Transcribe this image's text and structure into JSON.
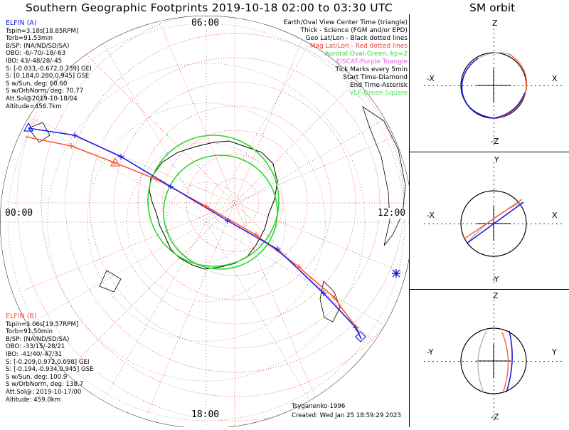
{
  "title": "Southern Geographic Footprints 2019-10-18 02:00 to 03:30 UTC",
  "orbit_title": "SM orbit",
  "colors": {
    "elfin_a": "#1a1ae6",
    "elfin_b": "#ff5a3c",
    "oval": "#2ed62e",
    "latlon": "#999999",
    "maglatlon": "#e8403a",
    "eiscat": "#e060e0",
    "vlf": "#4ce64c"
  },
  "map": {
    "hours": {
      "top": "06:00",
      "left": "00:00",
      "right": "12:00",
      "bottom": "18:00"
    }
  },
  "legend": [
    {
      "text": "Earth/Oval View Center Time (triangle)",
      "color": "#000000"
    },
    {
      "text": "Thick - Science (FGM and/or EPD)",
      "color": "#000000"
    },
    {
      "text": "Geo Lat/Lon - Black dotted lines",
      "color": "#000000"
    },
    {
      "text": "Mag Lat/Lon - Red dotted lines",
      "color": "#e8403a"
    },
    {
      "text": "Auroral Oval-Green, kp=2",
      "color": "#2ed62e"
    },
    {
      "text": "EISCAT-Purple Triangle",
      "color": "#e060e0"
    },
    {
      "text": "Tick Marks every 5min",
      "color": "#000000"
    },
    {
      "text": "Start Time-Diamond",
      "color": "#000000"
    },
    {
      "text": "End Time-Asterisk",
      "color": "#000000"
    },
    {
      "text": "VLF-Green Square",
      "color": "#4ce64c"
    }
  ],
  "elfin_a": {
    "name": "ELFIN (A)",
    "lines": [
      "Tspin=3.18s[18.85RPM]",
      "Torb=91.53min",
      "B/SP: (NA/ND/SD/SA)",
      "OBO: -6/-70/-18/-63",
      "IBO: 43/-48/28/-45",
      "S: [-0.033,-0.672,0.739] GEI",
      "S: [0.184,0.280,0.945] GSE",
      "S w/Sun, deg: 60.60",
      "S w/OrbNorm, deg: 70.77",
      "Att.Sol@2019-10-18/04",
      "Altitude=456.7km"
    ]
  },
  "elfin_b": {
    "name": "ELFIN (B)",
    "lines": [
      "Tspin=3.06s[19.57RPM]",
      "Torb=91.50min",
      "B/SP: (NA/ND/SD/SA)",
      "OBO: -33/15/-28/21",
      "IBO: -41/40/-47/31",
      "S: [-0.209,0.972,0.098] GEI",
      "S: [-0.194,-0.934,0.945] GSE",
      "S w/Sun, deg: 100.9",
      "S w/OrbNorm, deg: 138.7",
      "Att.Sol@: 2019-10-17/00",
      "Altitude: 459.0km"
    ]
  },
  "footer": {
    "model": "Tsyganenko-1996",
    "created": "Created: Wed Jan 25 18:59:29 2023"
  },
  "panels": [
    {
      "vert": [
        "Z",
        "-Z"
      ],
      "horiz": [
        "-X",
        "X"
      ]
    },
    {
      "vert": [
        "Y",
        "-Y"
      ],
      "horiz": [
        "-X",
        "X"
      ]
    },
    {
      "vert": [
        "Z",
        "-Z"
      ],
      "horiz": [
        "-Y",
        "Y"
      ]
    }
  ],
  "chart_data": {
    "type": "line",
    "projection": "southern polar geographic footprint map",
    "hour_labels": [
      "06:00",
      "00:00",
      "12:00",
      "18:00"
    ],
    "series": [
      {
        "name": "ELFIN (A)",
        "color": "#1a1ae6"
      },
      {
        "name": "ELFIN (B)",
        "color": "#ff5a3c"
      }
    ]
  }
}
